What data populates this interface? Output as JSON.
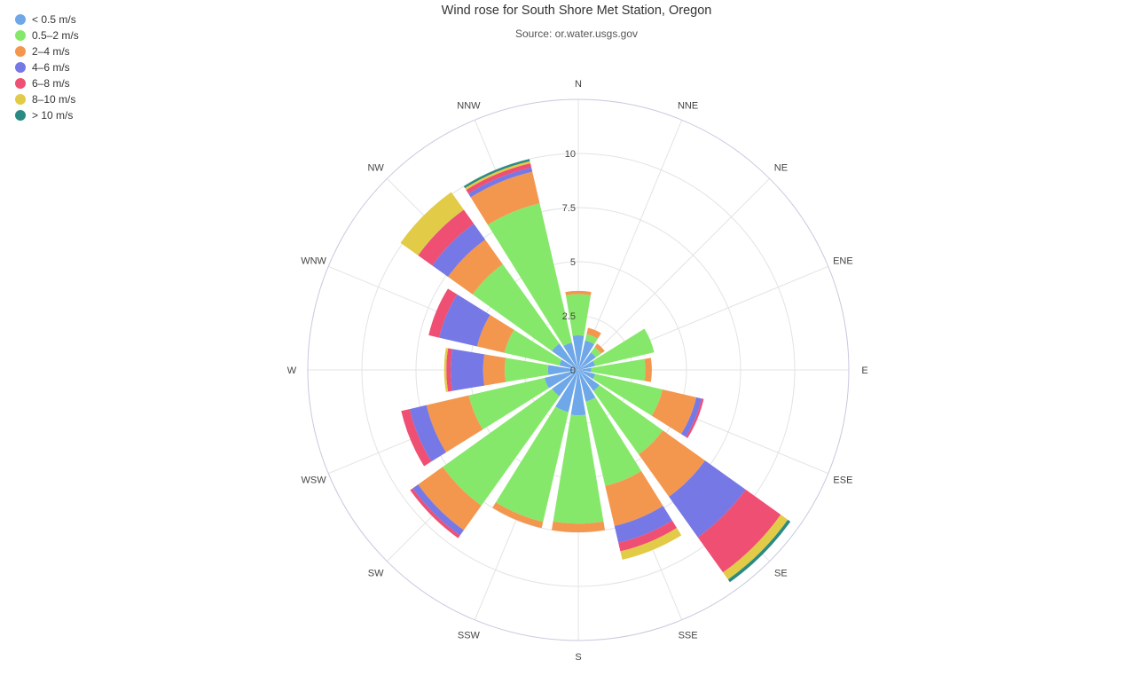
{
  "chart_data": {
    "type": "polar-stacked-bar",
    "title": "Wind rose for South Shore Met Station, Oregon",
    "subtitle": "Source: or.water.usgs.gov",
    "directions": [
      "N",
      "NNE",
      "NE",
      "ENE",
      "E",
      "ESE",
      "SE",
      "SSE",
      "S",
      "SSW",
      "SW",
      "WSW",
      "W",
      "WNW",
      "NW",
      "NNW"
    ],
    "radial_ticks": [
      "0",
      "2.5",
      "5",
      "7.5",
      "10"
    ],
    "radial_tick_values": [
      0,
      2.5,
      5,
      7.5,
      10
    ],
    "rmax": 12.5,
    "legend_position": "top-left",
    "series": [
      {
        "name": "< 0.5 m/s",
        "color": "#6fa8e8",
        "values": [
          1.6,
          1.4,
          1.0,
          0.8,
          0.6,
          0.8,
          1.2,
          1.5,
          2.1,
          2.0,
          1.5,
          1.6,
          1.4,
          0.9,
          1.5,
          1.3
        ]
      },
      {
        "name": "0.5–2 m/s",
        "color": "#86e86a",
        "values": [
          1.9,
          0.3,
          0.3,
          2.8,
          2.5,
          3.2,
          3.6,
          4.0,
          5.0,
          5.2,
          6.2,
          3.6,
          2.0,
          2.6,
          4.5,
          6.6
        ]
      },
      {
        "name": "2–4 m/s",
        "color": "#f4974e",
        "values": [
          0.15,
          0.3,
          0.2,
          0.0,
          0.3,
          1.6,
          2.4,
          1.9,
          0.4,
          0.3,
          1.4,
          2.0,
          1.0,
          1.3,
          1.4,
          1.5
        ]
      },
      {
        "name": "4–6 m/s",
        "color": "#7678e6",
        "values": [
          0.0,
          0.0,
          0.0,
          0.0,
          0.0,
          0.25,
          2.3,
          0.8,
          0.0,
          0.0,
          0.3,
          0.8,
          1.5,
          1.8,
          0.9,
          0.2
        ]
      },
      {
        "name": "6–8 m/s",
        "color": "#ee4f73",
        "values": [
          0.0,
          0.0,
          0.0,
          0.0,
          0.0,
          0.1,
          2.0,
          0.4,
          0.0,
          0.0,
          0.15,
          0.4,
          0.2,
          0.5,
          0.8,
          0.2
        ]
      },
      {
        "name": "8–10 m/s",
        "color": "#e1cb47",
        "values": [
          0.0,
          0.0,
          0.0,
          0.0,
          0.0,
          0.0,
          0.4,
          0.4,
          0.0,
          0.0,
          0.0,
          0.0,
          0.1,
          0.0,
          1.0,
          0.1
        ]
      },
      {
        "name": "> 10 m/s",
        "color": "#2a8a82",
        "values": [
          0.0,
          0.0,
          0.0,
          0.0,
          0.0,
          0.0,
          0.15,
          0.0,
          0.0,
          0.0,
          0.0,
          0.0,
          0.0,
          0.0,
          0.0,
          0.1
        ]
      }
    ]
  }
}
